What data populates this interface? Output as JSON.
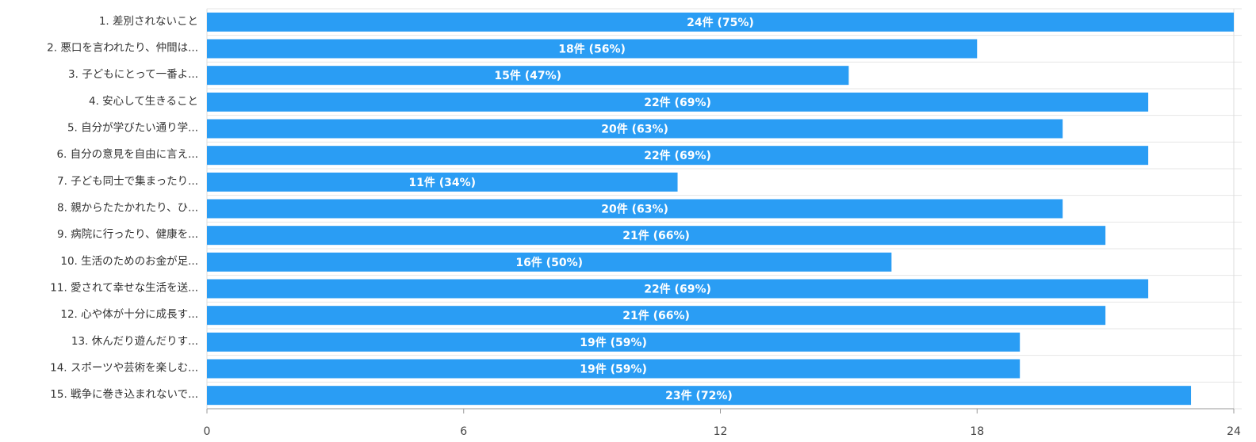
{
  "chart_data": {
    "type": "barh",
    "categories": [
      "1. 差別されないこと",
      "2. 悪口を言われたり、仲間は...",
      "3. 子どもにとって一番よ...",
      "4. 安心して生きること",
      "5. 自分が学びたい通り学...",
      "6. 自分の意見を自由に言え...",
      "7. 子ども同士で集まったり...",
      "8. 親からたたかれたり、ひ...",
      "9. 病院に行ったり、健康を...",
      "10. 生活のためのお金が足...",
      "11. 愛されて幸せな生活を送...",
      "12. 心や体が十分に成長す...",
      "13. 休んだり遊んだりす...",
      "14. スポーツや芸術を楽しむ...",
      "15. 戦争に巻き込まれないで..."
    ],
    "values": [
      24,
      18,
      15,
      22,
      20,
      22,
      11,
      20,
      21,
      16,
      22,
      21,
      19,
      19,
      23
    ],
    "value_labels": [
      "24件 (75%)",
      "18件 (56%)",
      "15件 (47%)",
      "22件 (69%)",
      "20件 (63%)",
      "22件 (69%)",
      "11件 (34%)",
      "20件 (63%)",
      "21件 (66%)",
      "16件 (50%)",
      "22件 (69%)",
      "21件 (66%)",
      "19件 (59%)",
      "19件 (59%)",
      "23件 (72%)"
    ],
    "color": "#2a9df4",
    "xlim": [
      0,
      24
    ],
    "xticks": [
      0,
      6,
      12,
      18,
      24
    ]
  }
}
